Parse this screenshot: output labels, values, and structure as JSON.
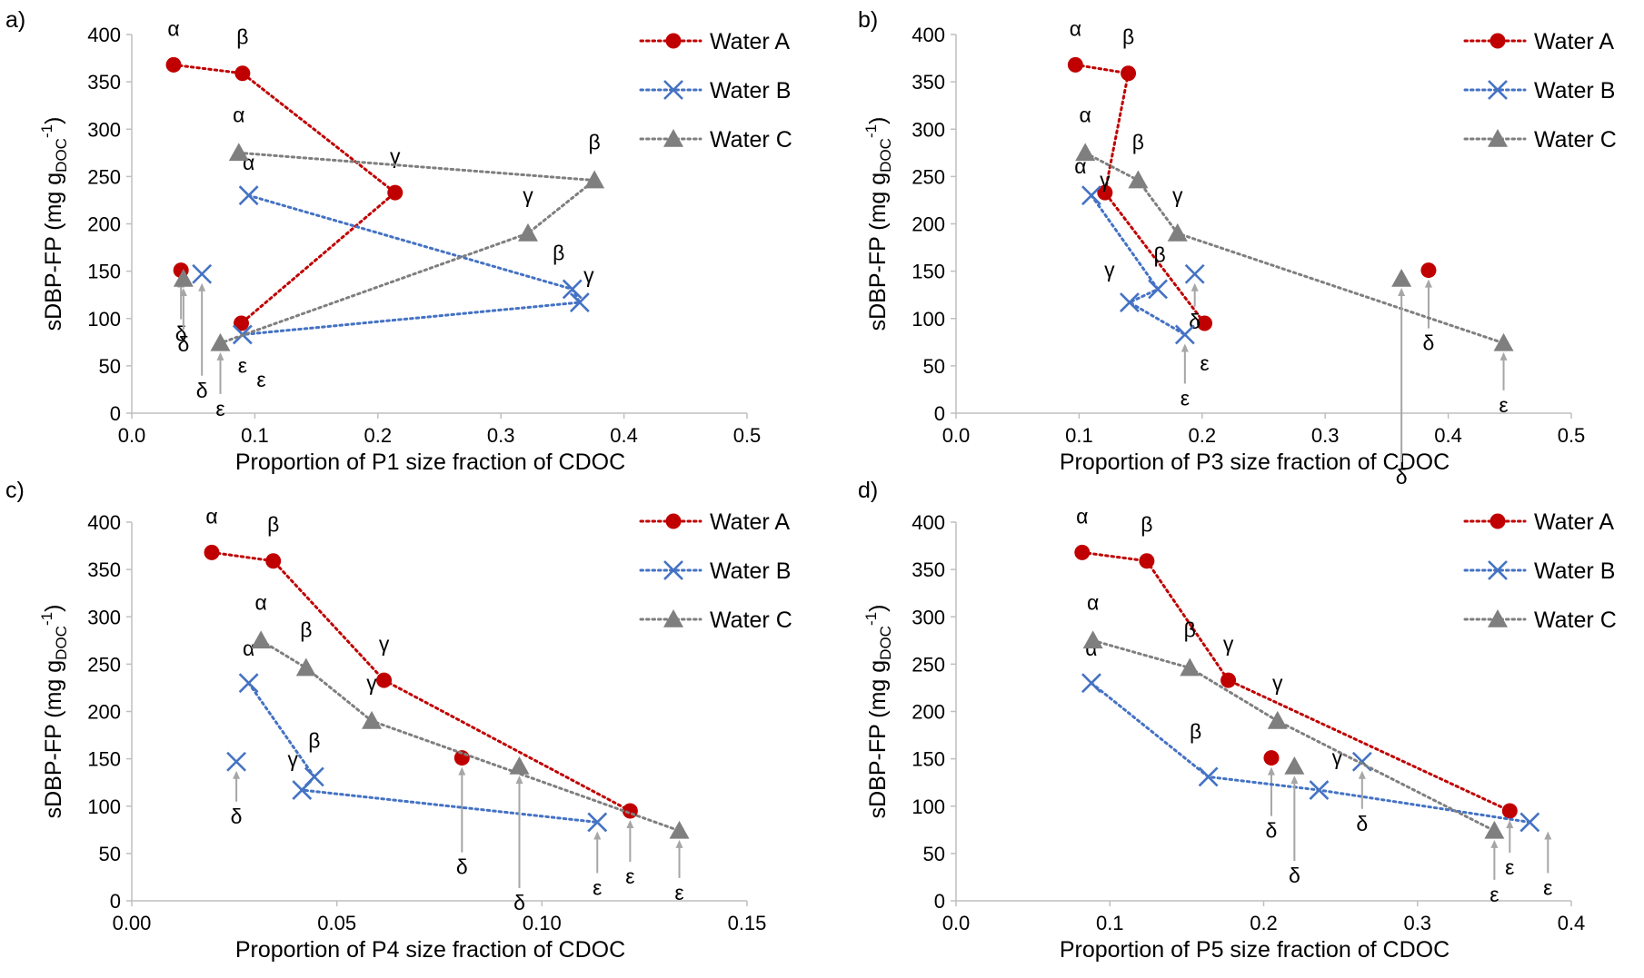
{
  "colors": {
    "Water A": "#c00000",
    "Water B": "#4472c4",
    "Water C": "#7f7f7f",
    "axis": "#bfbfbf",
    "arrow": "#a6a6a6"
  },
  "chart_data": [
    {
      "panel": "a)",
      "type": "scatter",
      "xlabel": "Proportion of P1  size fraction of CDOC",
      "ylabel": "sDBP-FP (mg gDOC-1)",
      "xlim": [
        0,
        0.5
      ],
      "ylim": [
        0,
        400
      ],
      "xticks": [
        "0.0",
        "0.1",
        "0.2",
        "0.3",
        "0.4",
        "0.5"
      ],
      "yticks": [
        "0",
        "50",
        "100",
        "150",
        "200",
        "250",
        "300",
        "350",
        "400"
      ],
      "grid": false,
      "legend": "right",
      "legend_entries": [
        "Water A",
        "Water B",
        "Water C"
      ],
      "series": [
        {
          "name": "Water A",
          "marker": "circle",
          "points": [
            {
              "label": "α",
              "x": 0.034,
              "y": 368
            },
            {
              "label": "β",
              "x": 0.09,
              "y": 359
            },
            {
              "label": "γ",
              "x": 0.214,
              "y": 233
            },
            {
              "label": "δ",
              "x": 0.04,
              "y": 151
            },
            {
              "label": "ε",
              "x": 0.089,
              "y": 95
            }
          ]
        },
        {
          "name": "Water B",
          "marker": "x",
          "points": [
            {
              "label": "α",
              "x": 0.095,
              "y": 230
            },
            {
              "label": "β",
              "x": 0.358,
              "y": 131
            },
            {
              "label": "γ",
              "x": 0.364,
              "y": 117
            },
            {
              "label": "δ",
              "x": 0.057,
              "y": 147
            },
            {
              "label": "ε",
              "x": 0.09,
              "y": 83
            }
          ]
        },
        {
          "name": "Water C",
          "marker": "triangle",
          "points": [
            {
              "label": "α",
              "x": 0.087,
              "y": 275
            },
            {
              "label": "β",
              "x": 0.376,
              "y": 246
            },
            {
              "label": "γ",
              "x": 0.322,
              "y": 190
            },
            {
              "label": "δ",
              "x": 0.042,
              "y": 142
            },
            {
              "label": "ε",
              "x": 0.072,
              "y": 74
            }
          ]
        }
      ]
    },
    {
      "panel": "b)",
      "type": "scatter",
      "xlabel": "Proportion of P3 size fraction of CDOC",
      "ylabel": "sDBP-FP (mg gDOC-1)",
      "xlim": [
        0,
        0.5
      ],
      "ylim": [
        0,
        400
      ],
      "xticks": [
        "0.0",
        "0.1",
        "0.2",
        "0.3",
        "0.4",
        "0.5"
      ],
      "yticks": [
        "0",
        "50",
        "100",
        "150",
        "200",
        "250",
        "300",
        "350",
        "400"
      ],
      "grid": false,
      "legend": "right",
      "legend_entries": [
        "Water A",
        "Water B",
        "Water C"
      ],
      "series": [
        {
          "name": "Water A",
          "marker": "circle",
          "points": [
            {
              "label": "α",
              "x": 0.097,
              "y": 368
            },
            {
              "label": "β",
              "x": 0.14,
              "y": 359
            },
            {
              "label": "γ",
              "x": 0.121,
              "y": 233
            },
            {
              "label": "δ",
              "x": 0.384,
              "y": 151
            },
            {
              "label": "ε",
              "x": 0.202,
              "y": 95
            }
          ]
        },
        {
          "name": "Water B",
          "marker": "x",
          "points": [
            {
              "label": "α",
              "x": 0.11,
              "y": 230
            },
            {
              "label": "β",
              "x": 0.164,
              "y": 131
            },
            {
              "label": "γ",
              "x": 0.141,
              "y": 117
            },
            {
              "label": "δ",
              "x": 0.194,
              "y": 147
            },
            {
              "label": "ε",
              "x": 0.186,
              "y": 83
            }
          ]
        },
        {
          "name": "Water C",
          "marker": "triangle",
          "points": [
            {
              "label": "α",
              "x": 0.105,
              "y": 275
            },
            {
              "label": "β",
              "x": 0.148,
              "y": 246
            },
            {
              "label": "γ",
              "x": 0.18,
              "y": 190
            },
            {
              "label": "δ",
              "x": 0.362,
              "y": 142
            },
            {
              "label": "ε",
              "x": 0.445,
              "y": 74
            }
          ]
        }
      ]
    },
    {
      "panel": "c)",
      "type": "scatter",
      "xlabel": "Proportion of P4  size fraction of CDOC",
      "ylabel": "sDBP-FP (mg gDOC-1)",
      "xlim": [
        0,
        0.15
      ],
      "ylim": [
        0,
        400
      ],
      "xticks": [
        "0.00",
        "0.05",
        "0.10",
        "0.15"
      ],
      "yticks": [
        "0",
        "50",
        "100",
        "150",
        "200",
        "250",
        "300",
        "350",
        "400"
      ],
      "grid": false,
      "legend": "right",
      "legend_entries": [
        "Water A",
        "Water B",
        "Water C"
      ],
      "series": [
        {
          "name": "Water A",
          "marker": "circle",
          "points": [
            {
              "label": "α",
              "x": 0.0195,
              "y": 368
            },
            {
              "label": "β",
              "x": 0.0345,
              "y": 359
            },
            {
              "label": "γ",
              "x": 0.0615,
              "y": 233
            },
            {
              "label": "δ",
              "x": 0.0805,
              "y": 151
            },
            {
              "label": "ε",
              "x": 0.1215,
              "y": 95
            }
          ]
        },
        {
          "name": "Water B",
          "marker": "x",
          "points": [
            {
              "label": "α",
              "x": 0.0285,
              "y": 230
            },
            {
              "label": "β",
              "x": 0.0445,
              "y": 131
            },
            {
              "label": "γ",
              "x": 0.0415,
              "y": 117
            },
            {
              "label": "δ",
              "x": 0.0255,
              "y": 147
            },
            {
              "label": "ε",
              "x": 0.1135,
              "y": 83
            }
          ]
        },
        {
          "name": "Water C",
          "marker": "triangle",
          "points": [
            {
              "label": "α",
              "x": 0.0315,
              "y": 275
            },
            {
              "label": "β",
              "x": 0.0425,
              "y": 246
            },
            {
              "label": "γ",
              "x": 0.0585,
              "y": 190
            },
            {
              "label": "δ",
              "x": 0.0945,
              "y": 142
            },
            {
              "label": "ε",
              "x": 0.1335,
              "y": 74
            }
          ]
        }
      ]
    },
    {
      "panel": "d)",
      "type": "scatter",
      "xlabel": "Proportion of P5  size fraction of CDOC",
      "ylabel": "sDBP-FP (mg gDOC-1)",
      "xlim": [
        0,
        0.4
      ],
      "ylim": [
        0,
        400
      ],
      "xticks": [
        "0.0",
        "0.1",
        "0.2",
        "0.3",
        "0.4"
      ],
      "yticks": [
        "0",
        "50",
        "100",
        "150",
        "200",
        "250",
        "300",
        "350",
        "400"
      ],
      "grid": false,
      "legend": "right",
      "legend_entries": [
        "Water A",
        "Water B",
        "Water C"
      ],
      "series": [
        {
          "name": "Water A",
          "marker": "circle",
          "points": [
            {
              "label": "α",
              "x": 0.082,
              "y": 368
            },
            {
              "label": "β",
              "x": 0.124,
              "y": 359
            },
            {
              "label": "γ",
              "x": 0.177,
              "y": 233
            },
            {
              "label": "δ",
              "x": 0.205,
              "y": 151
            },
            {
              "label": "ε",
              "x": 0.36,
              "y": 95
            }
          ]
        },
        {
          "name": "Water B",
          "marker": "x",
          "points": [
            {
              "label": "α",
              "x": 0.088,
              "y": 230
            },
            {
              "label": "β",
              "x": 0.164,
              "y": 131
            },
            {
              "label": "γ",
              "x": 0.236,
              "y": 117
            },
            {
              "label": "δ",
              "x": 0.264,
              "y": 147
            },
            {
              "label": "ε",
              "x": 0.373,
              "y": 83
            }
          ]
        },
        {
          "name": "Water C",
          "marker": "triangle",
          "points": [
            {
              "label": "α",
              "x": 0.089,
              "y": 275
            },
            {
              "label": "β",
              "x": 0.152,
              "y": 246
            },
            {
              "label": "γ",
              "x": 0.209,
              "y": 190
            },
            {
              "label": "δ",
              "x": 0.22,
              "y": 142
            },
            {
              "label": "ε",
              "x": 0.35,
              "y": 74
            }
          ]
        }
      ]
    }
  ]
}
